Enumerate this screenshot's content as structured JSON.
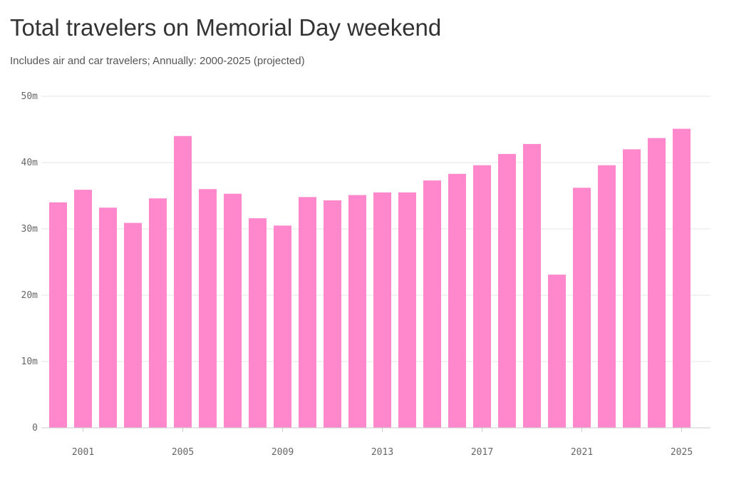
{
  "title": "Total travelers on Memorial Day weekend",
  "subtitle": "Includes air and car travelers; Annually: 2000-2025 (projected)",
  "chart_data": {
    "type": "bar",
    "categories": [
      "2000",
      "2001",
      "2002",
      "2003",
      "2004",
      "2005",
      "2006",
      "2007",
      "2008",
      "2009",
      "2010",
      "2011",
      "2012",
      "2013",
      "2014",
      "2015",
      "2016",
      "2017",
      "2018",
      "2019",
      "2020",
      "2021",
      "2022",
      "2023",
      "2024",
      "2025"
    ],
    "values": [
      34.0,
      35.9,
      33.2,
      30.9,
      34.6,
      44.0,
      36.0,
      35.3,
      31.6,
      30.5,
      34.8,
      34.3,
      35.1,
      35.5,
      35.5,
      37.3,
      38.3,
      39.6,
      41.3,
      42.8,
      23.1,
      36.2,
      39.6,
      42.0,
      43.7,
      45.1
    ],
    "title": "Total travelers on Memorial Day weekend",
    "subtitle": "Includes air and car travelers; Annually: 2000-2025 (projected)",
    "xlabel": "",
    "ylabel": "",
    "ylim": [
      0,
      50
    ],
    "y_ticks": [
      0,
      10,
      20,
      30,
      40,
      50
    ],
    "y_tick_labels": [
      "0",
      "10m",
      "20m",
      "30m",
      "40m",
      "50m"
    ],
    "x_tick_labels": [
      "2001",
      "2005",
      "2009",
      "2013",
      "2017",
      "2021",
      "2025"
    ],
    "grid": true,
    "legend": "none",
    "bar_color": "#ff88cc"
  }
}
